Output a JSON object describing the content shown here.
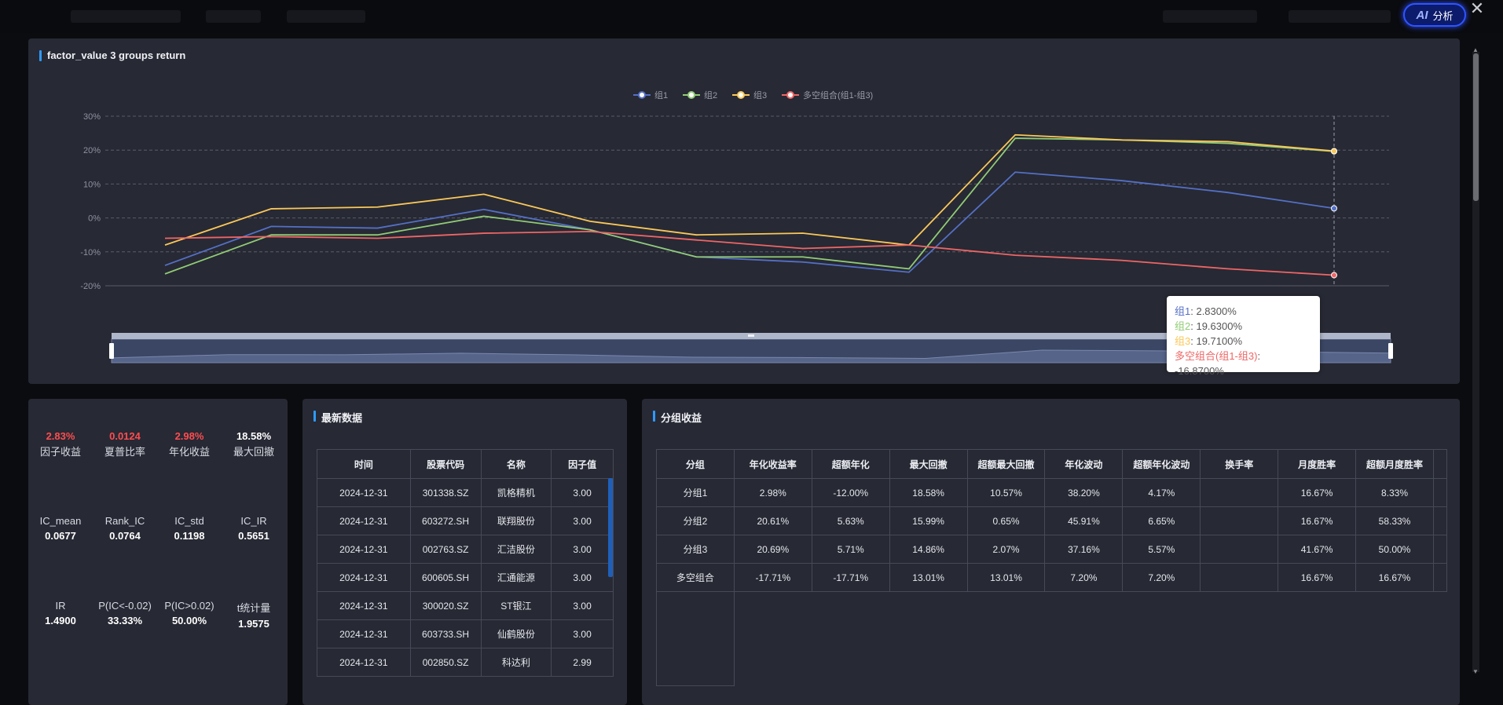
{
  "header": {
    "ai_button_label": "分析",
    "ai_button_prefix": "AI",
    "close_label": "✕"
  },
  "chart_panel": {
    "title": "factor_value 3 groups return",
    "tooltip": {
      "g1": "组1",
      "g1_value": ": 2.8300%",
      "g2": "组2",
      "g2_value": ": 19.6300%",
      "g3": "组3",
      "g3_value": ": 19.7100%",
      "ls": "多空组合(组1-组3)",
      "ls_value": ": -16.8700%"
    }
  },
  "chart_data": {
    "type": "line",
    "legend_position": "top-center",
    "y_ticks": [
      "30%",
      "20%",
      "10%",
      "0%",
      "-10%",
      "-20%"
    ],
    "ylim": [
      -20,
      30
    ],
    "grid": true,
    "series": [
      {
        "name": "组1",
        "color": "#5470c6",
        "values": [
          -14,
          -2.5,
          -3,
          2.5,
          -3.5,
          -11.5,
          -13,
          -16,
          13.5,
          11,
          7.5,
          2.83
        ]
      },
      {
        "name": "组2",
        "color": "#91cc75",
        "values": [
          -16.5,
          -5,
          -5,
          0.5,
          -3.5,
          -11.5,
          -11.5,
          -15,
          23.5,
          23,
          22,
          19.63
        ]
      },
      {
        "name": "组3",
        "color": "#fac858",
        "values": [
          -8,
          2.7,
          3.2,
          7,
          -1,
          -5,
          -4.5,
          -8,
          24.5,
          23,
          22.5,
          19.71
        ]
      },
      {
        "name": "多空组合(组1-组3)",
        "color": "#ee6666",
        "values": [
          -6,
          -5.5,
          -6,
          -4.5,
          -4,
          -6.5,
          -9,
          -8,
          -11,
          -12.5,
          -15,
          -16.87
        ]
      }
    ]
  },
  "metrics": {
    "row1": [
      {
        "value": "2.83%",
        "label": "因子收益",
        "red": true
      },
      {
        "value": "0.0124",
        "label": "夏普比率",
        "red": true
      },
      {
        "value": "2.98%",
        "label": "年化收益",
        "red": true
      },
      {
        "value": "18.58%",
        "label": "最大回撤",
        "red": false
      }
    ],
    "row2": [
      {
        "label": "IC_mean",
        "value": "0.0677"
      },
      {
        "label": "Rank_IC",
        "value": "0.0764"
      },
      {
        "label": "IC_std",
        "value": "0.1198"
      },
      {
        "label": "IC_IR",
        "value": "0.5651"
      }
    ],
    "row3": [
      {
        "label": "IR",
        "value": "1.4900"
      },
      {
        "label": "P(IC<-0.02)",
        "value": "33.33%"
      },
      {
        "label": "P(IC>0.02)",
        "value": "50.00%"
      },
      {
        "label": "t统计量",
        "value": "1.9575"
      }
    ]
  },
  "latest": {
    "title": "最新数据",
    "headers": [
      "时间",
      "股票代码",
      "名称",
      "因子值"
    ],
    "rows": [
      [
        "2024-12-31",
        "301338.SZ",
        "凯格精机",
        "3.00"
      ],
      [
        "2024-12-31",
        "603272.SH",
        "联翔股份",
        "3.00"
      ],
      [
        "2024-12-31",
        "002763.SZ",
        "汇洁股份",
        "3.00"
      ],
      [
        "2024-12-31",
        "600605.SH",
        "汇通能源",
        "3.00"
      ],
      [
        "2024-12-31",
        "300020.SZ",
        "ST银江",
        "3.00"
      ],
      [
        "2024-12-31",
        "603733.SH",
        "仙鹤股份",
        "3.00"
      ],
      [
        "2024-12-31",
        "002850.SZ",
        "科达利",
        "2.99"
      ]
    ]
  },
  "groups": {
    "title": "分组收益",
    "headers": [
      "分组",
      "年化收益率",
      "超额年化",
      "最大回撤",
      "超额最大回撤",
      "年化波动",
      "超额年化波动",
      "换手率",
      "月度胜率",
      "超额月度胜率"
    ],
    "rows": [
      [
        "分组1",
        "2.98%",
        "-12.00%",
        "18.58%",
        "10.57%",
        "38.20%",
        "4.17%",
        "",
        "16.67%",
        "8.33%"
      ],
      [
        "分组2",
        "20.61%",
        "5.63%",
        "15.99%",
        "0.65%",
        "45.91%",
        "6.65%",
        "",
        "16.67%",
        "58.33%"
      ],
      [
        "分组3",
        "20.69%",
        "5.71%",
        "14.86%",
        "2.07%",
        "37.16%",
        "5.57%",
        "",
        "41.67%",
        "50.00%"
      ],
      [
        "多空组合",
        "-17.71%",
        "-17.71%",
        "13.01%",
        "13.01%",
        "7.20%",
        "7.20%",
        "",
        "16.67%",
        "16.67%"
      ]
    ]
  }
}
